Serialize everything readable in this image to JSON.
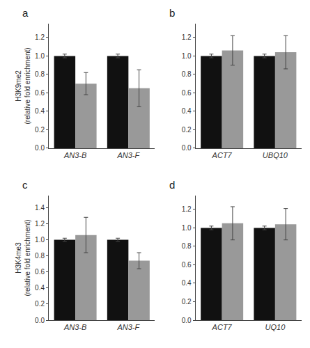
{
  "chart_data": [
    {
      "type": "bar",
      "title": "a",
      "ylabel": "H3K9me2\n(relative fold enrichment)",
      "categories": [
        "AN3-B",
        "AN3-F"
      ],
      "series": [
        {
          "color": "#111111",
          "values": [
            1.0,
            1.0
          ],
          "errors": [
            0.02,
            0.02
          ]
        },
        {
          "color": "#999999",
          "values": [
            0.7,
            0.65
          ],
          "errors": [
            0.12,
            0.2
          ]
        }
      ],
      "ylim": [
        0,
        1.35
      ],
      "yticks": [
        {
          "value": 0,
          "label": "0.0"
        },
        0.2,
        0.4,
        0.6,
        0.8,
        {
          "value": 1,
          "label": "1.0"
        },
        1.2
      ],
      "grid": false
    },
    {
      "type": "bar",
      "title": "b",
      "categories": [
        "ACT7",
        "UBQ10"
      ],
      "series": [
        {
          "color": "#111111",
          "values": [
            1.0,
            1.0
          ],
          "errors": [
            0.02,
            0.02
          ]
        },
        {
          "color": "#999999",
          "values": [
            1.06,
            1.04
          ],
          "errors": [
            0.16,
            0.18
          ]
        }
      ],
      "ylim": [
        0,
        1.35
      ],
      "yticks": [
        {
          "value": 0,
          "label": "0.0"
        },
        0.2,
        0.4,
        0.6,
        0.8,
        {
          "value": 1,
          "label": "1.0"
        },
        1.2
      ],
      "grid": false
    },
    {
      "type": "bar",
      "title": "c",
      "ylabel": "H3K4me3\n(relative fold enrichment)",
      "categories": [
        "AN3-B",
        "AN3-F"
      ],
      "series": [
        {
          "color": "#111111",
          "values": [
            1.0,
            1.0
          ],
          "errors": [
            0.02,
            0.02
          ]
        },
        {
          "color": "#999999",
          "values": [
            1.06,
            0.74
          ],
          "errors": [
            0.22,
            0.1
          ]
        }
      ],
      "ylim": [
        0,
        1.55
      ],
      "yticks": [
        {
          "value": 0,
          "label": "0.0"
        },
        0.2,
        0.4,
        0.6,
        0.8,
        {
          "value": 1,
          "label": "1.0"
        },
        1.2,
        1.4
      ],
      "grid": false
    },
    {
      "type": "bar",
      "title": "d",
      "categories": [
        "ACT7",
        "UQ10"
      ],
      "series": [
        {
          "color": "#111111",
          "values": [
            1.0,
            1.0
          ],
          "errors": [
            0.02,
            0.02
          ]
        },
        {
          "color": "#999999",
          "values": [
            1.05,
            1.04
          ],
          "errors": [
            0.18,
            0.17
          ]
        }
      ],
      "ylim": [
        0,
        1.35
      ],
      "yticks": [
        {
          "value": 0,
          "label": "0.0"
        },
        0.2,
        0.4,
        0.6,
        0.8,
        {
          "value": 1,
          "label": "1.0"
        },
        1.2
      ],
      "grid": false
    }
  ]
}
